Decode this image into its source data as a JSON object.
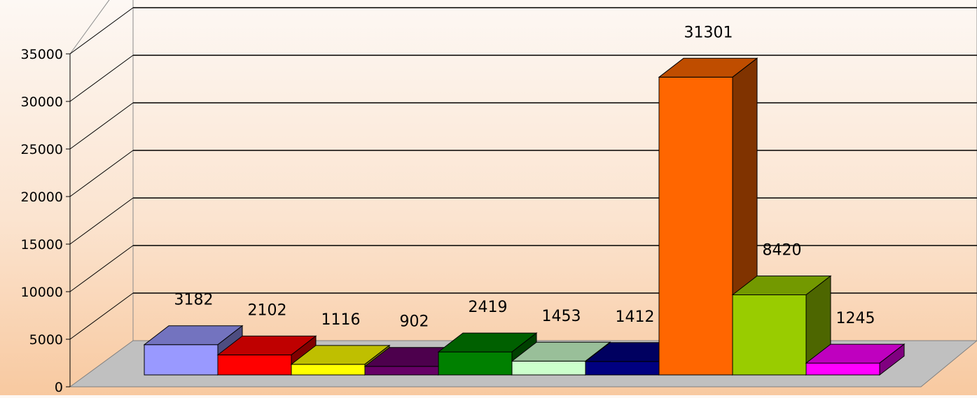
{
  "chart_data": {
    "type": "bar",
    "title": "",
    "xlabel": "",
    "ylabel": "",
    "categories": [
      "",
      "",
      "",
      "",
      "",
      "",
      "",
      "",
      "",
      ""
    ],
    "values": [
      3182,
      2102,
      1116,
      902,
      2419,
      1453,
      1412,
      31301,
      8420,
      1245
    ],
    "ylim": [
      0,
      35000
    ],
    "yticks": [
      "0",
      "5000",
      "10000",
      "15000",
      "20000",
      "25000",
      "30000",
      "35000"
    ],
    "grid": true,
    "legend": "none",
    "style": "3d-columns",
    "colors": [
      "#9999ff",
      "#ff0000",
      "#ffff00",
      "#660066",
      "#008000",
      "#ccffcc",
      "#000080",
      "#ff6600",
      "#99cc00",
      "#ff00ff"
    ]
  }
}
